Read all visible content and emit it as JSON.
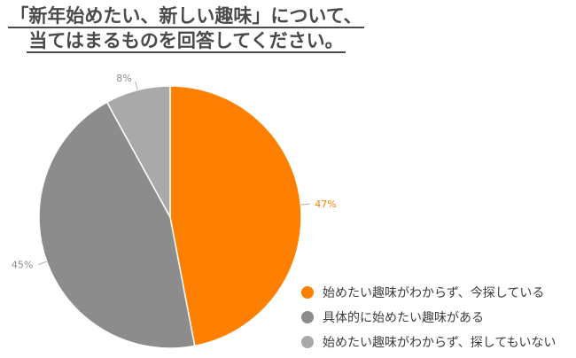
{
  "title": {
    "line1": "「新年始めたい、新しい趣味」について、",
    "line2": "当てはまるものを回答してください。"
  },
  "chart_data": {
    "type": "pie",
    "slices": [
      {
        "label": "始めたい趣味がわからず、今探している",
        "value": 47,
        "display": "47%",
        "color": "#ff8000"
      },
      {
        "label": "具体的に始めたい趣味がある",
        "value": 45,
        "display": "45%",
        "color": "#8c8c8c"
      },
      {
        "label": "始めたい趣味がわからず、探してもいない",
        "value": 8,
        "display": "8%",
        "color": "#a9a9a9"
      }
    ],
    "legend_position": "bottom-right"
  }
}
